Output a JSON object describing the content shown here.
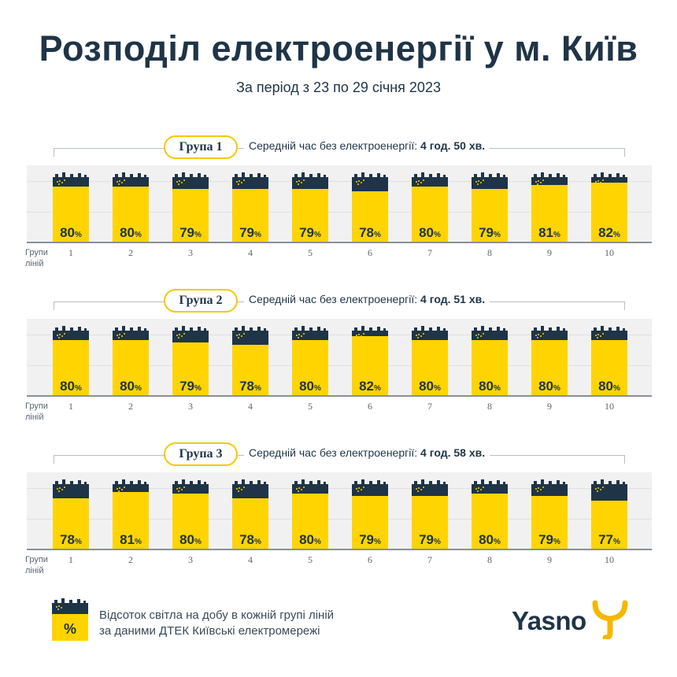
{
  "title": "Розподіл електроенергії у м. Київ",
  "subtitle": "За період з 23 по 29 січня 2023",
  "row_label": "Групи ліній",
  "percent_sign": "%",
  "legend": {
    "icon_label": "%",
    "text_line1": "Відсоток світла на добу в кожній групі ліній",
    "text_line2": "за даними ДТЕК Київські електромережі"
  },
  "logo": {
    "text": "Yasno",
    "mark": "Y-logo-icon"
  },
  "colors": {
    "navy": "#1f3447",
    "yellow": "#ffd400",
    "pill_border": "#f5c900",
    "panel": "#f1f1f1"
  },
  "chart_data": [
    {
      "type": "bar",
      "group_label": "Група 1",
      "avg_label": "Середній час без електроенергії:",
      "avg_value": "4 год. 50 хв.",
      "categories": [
        "1",
        "2",
        "3",
        "4",
        "5",
        "6",
        "7",
        "8",
        "9",
        "10"
      ],
      "values": [
        80,
        80,
        79,
        79,
        79,
        78,
        80,
        79,
        81,
        82
      ],
      "unit": "%",
      "ylim": [
        0,
        100
      ]
    },
    {
      "type": "bar",
      "group_label": "Група 2",
      "avg_label": "Середній час без електроенергії:",
      "avg_value": "4 год. 51 хв.",
      "categories": [
        "1",
        "2",
        "3",
        "4",
        "5",
        "6",
        "7",
        "8",
        "9",
        "10"
      ],
      "values": [
        80,
        80,
        79,
        78,
        80,
        82,
        80,
        80,
        80,
        80
      ],
      "unit": "%",
      "ylim": [
        0,
        100
      ]
    },
    {
      "type": "bar",
      "group_label": "Група 3",
      "avg_label": "Середній час без електроенергії:",
      "avg_value": "4 год. 58 хв.",
      "categories": [
        "1",
        "2",
        "3",
        "4",
        "5",
        "6",
        "7",
        "8",
        "9",
        "10"
      ],
      "values": [
        78,
        81,
        80,
        78,
        80,
        79,
        79,
        80,
        79,
        77
      ],
      "unit": "%",
      "ylim": [
        0,
        100
      ]
    }
  ]
}
